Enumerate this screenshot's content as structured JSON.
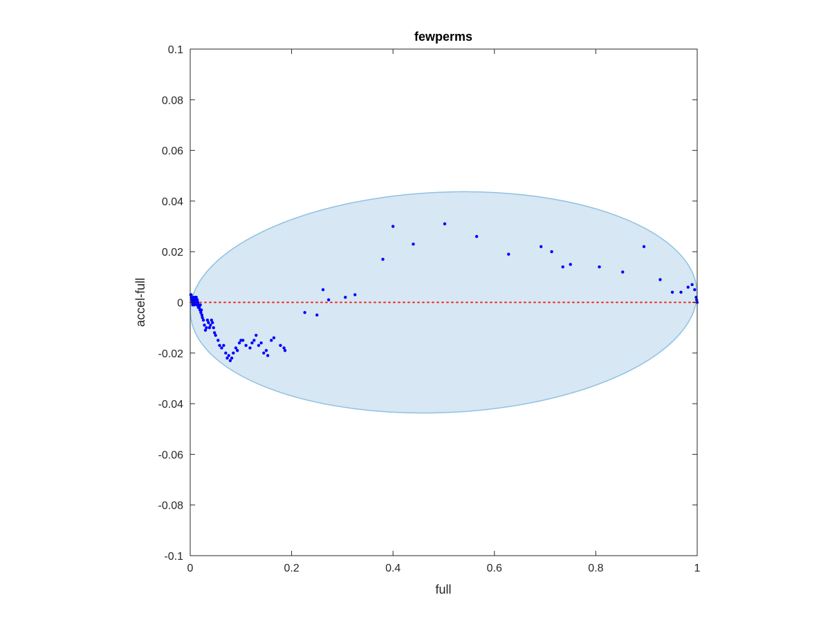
{
  "chart_data": {
    "type": "scatter",
    "title": "fewperms",
    "xlabel": "full",
    "ylabel": "accel-full",
    "xlim": [
      0,
      1
    ],
    "ylim": [
      -0.1,
      0.1
    ],
    "xticks": [
      0,
      0.2,
      0.4,
      0.6,
      0.8,
      1
    ],
    "xtick_labels": [
      "0",
      "0.2",
      "0.4",
      "0.6",
      "0.8",
      "1"
    ],
    "yticks": [
      -0.1,
      -0.08,
      -0.06,
      -0.04,
      -0.02,
      0,
      0.02,
      0.04,
      0.06,
      0.08,
      0.1
    ],
    "ytick_labels": [
      "-0.1",
      "-0.08",
      "-0.06",
      "-0.04",
      "-0.02",
      "0",
      "0.02",
      "0.04",
      "0.06",
      "0.08",
      "0.1"
    ],
    "grid": false,
    "reference_line": {
      "y": 0,
      "color": "#e8281e",
      "style": "dotted"
    },
    "region": {
      "shape": "ellipse",
      "center": [
        0.5,
        0
      ],
      "semi_axes": [
        0.5,
        0.0435
      ],
      "rotation_deg": -2.5,
      "fill": "#d7e7f3",
      "stroke": "#8ec1e2"
    },
    "series": [
      {
        "color": "#0000ff",
        "x": [
          0.001,
          0.002,
          0.003,
          0.004,
          0.005,
          0.006,
          0.007,
          0.008,
          0.009,
          0.01,
          0.011,
          0.012,
          0.013,
          0.014,
          0.015,
          0.016,
          0.017,
          0.018,
          0.019,
          0.02,
          0.021,
          0.022,
          0.023,
          0.024,
          0.026,
          0.028,
          0.03,
          0.032,
          0.034,
          0.036,
          0.038,
          0.04,
          0.042,
          0.044,
          0.046,
          0.048,
          0.05,
          0.055,
          0.058,
          0.062,
          0.066,
          0.07,
          0.073,
          0.076,
          0.079,
          0.082,
          0.085,
          0.09,
          0.093,
          0.097,
          0.1,
          0.104,
          0.11,
          0.118,
          0.122,
          0.126,
          0.13,
          0.135,
          0.14,
          0.145,
          0.15,
          0.153,
          0.16,
          0.165,
          0.178,
          0.185,
          0.187,
          0.226,
          0.25,
          0.262,
          0.273,
          0.306,
          0.325,
          0.38,
          0.4,
          0.44,
          0.502,
          0.565,
          0.628,
          0.692,
          0.713,
          0.735,
          0.75,
          0.807,
          0.853,
          0.895,
          0.927,
          0.951,
          0.968,
          0.982,
          0.99,
          0.995,
          0.998,
          0.999,
          1.0,
          0.002,
          0.004,
          0.008,
          0.012,
          0.016
        ],
        "y": [
          0.003,
          0.002,
          0.001,
          0.0,
          -0.001,
          0.002,
          0.001,
          -0.001,
          0.002,
          0.0,
          0.002,
          0.001,
          -0.001,
          0.001,
          0.0,
          -0.002,
          -0.001,
          -0.002,
          -0.003,
          -0.001,
          -0.004,
          -0.003,
          -0.005,
          -0.006,
          -0.007,
          -0.009,
          -0.011,
          -0.01,
          -0.007,
          -0.008,
          -0.01,
          -0.009,
          -0.007,
          -0.008,
          -0.01,
          -0.012,
          -0.013,
          -0.015,
          -0.017,
          -0.018,
          -0.017,
          -0.02,
          -0.022,
          -0.021,
          -0.023,
          -0.022,
          -0.02,
          -0.018,
          -0.019,
          -0.016,
          -0.015,
          -0.015,
          -0.017,
          -0.018,
          -0.016,
          -0.015,
          -0.013,
          -0.017,
          -0.016,
          -0.02,
          -0.019,
          -0.021,
          -0.015,
          -0.014,
          -0.017,
          -0.018,
          -0.019,
          -0.004,
          -0.005,
          0.005,
          0.001,
          0.002,
          0.003,
          0.017,
          0.03,
          0.023,
          0.031,
          0.026,
          0.019,
          0.022,
          0.02,
          0.014,
          0.015,
          0.014,
          0.012,
          0.022,
          0.009,
          0.004,
          0.004,
          0.006,
          0.007,
          0.005,
          0.002,
          0.001,
          0.0,
          0.003,
          0.001,
          0.0,
          0.002,
          -0.001
        ]
      }
    ]
  }
}
